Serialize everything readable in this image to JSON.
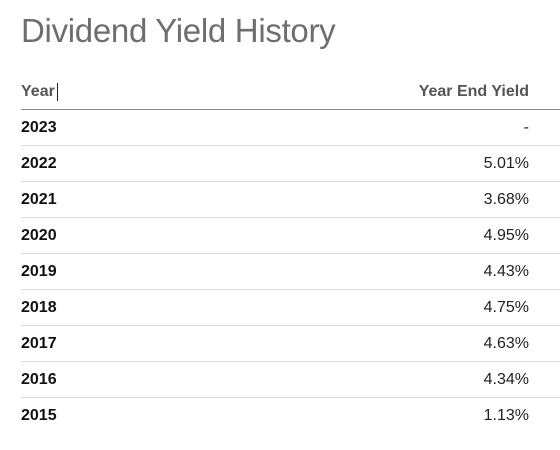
{
  "title": "Dividend Yield History",
  "table": {
    "headers": {
      "year": "Year",
      "yield": "Year End Yield"
    },
    "rows": [
      {
        "year": "2023",
        "yield": "-"
      },
      {
        "year": "2022",
        "yield": "5.01%"
      },
      {
        "year": "2021",
        "yield": "3.68%"
      },
      {
        "year": "2020",
        "yield": "4.95%"
      },
      {
        "year": "2019",
        "yield": "4.43%"
      },
      {
        "year": "2018",
        "yield": "4.75%"
      },
      {
        "year": "2017",
        "yield": "4.63%"
      },
      {
        "year": "2016",
        "yield": "4.34%"
      },
      {
        "year": "2015",
        "yield": "1.13%"
      }
    ]
  }
}
